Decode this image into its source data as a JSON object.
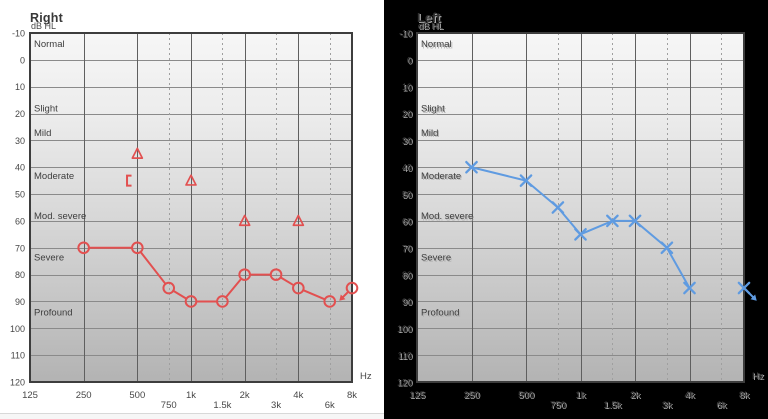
{
  "colors": {
    "right_ear_accent": "#e25050",
    "left_ear_accent": "#5f9be1",
    "right_panel_bg": "#ffffff",
    "left_panel_bg": "#000000"
  },
  "axes": {
    "y_label": "dB HL",
    "x_label": "Hz",
    "ylim": [
      -10,
      120
    ],
    "y_ticks": [
      -10,
      0,
      10,
      20,
      30,
      40,
      50,
      60,
      70,
      80,
      90,
      100,
      110,
      120
    ],
    "x_ticks_major": [
      "125",
      "250",
      "500",
      "1k",
      "2k",
      "4k",
      "8k"
    ],
    "x_ticks_minor": [
      "750",
      "1.5k",
      "3k",
      "6k"
    ],
    "severity_zones": [
      {
        "label": "Normal",
        "db": -6
      },
      {
        "label": "Slight",
        "db": 18
      },
      {
        "label": "Mild",
        "db": 27
      },
      {
        "label": "Moderate",
        "db": 43
      },
      {
        "label": "Mod. severe",
        "db": 58
      },
      {
        "label": "Severe",
        "db": 73.5
      },
      {
        "label": "Profound",
        "db": 94
      }
    ]
  },
  "chart_data": [
    {
      "type": "line",
      "title": "Right",
      "ear": "right",
      "marker": "circle",
      "color": "#e25050",
      "x_unit": "Hz",
      "y_unit": "dB HL",
      "ylim": [
        -10,
        120
      ],
      "x": [
        "250",
        "500",
        "750",
        "1k",
        "1.5k",
        "2k",
        "3k",
        "4k",
        "6k"
      ],
      "y": [
        70,
        70,
        85,
        90,
        90,
        80,
        80,
        85,
        90
      ],
      "no_response_point": {
        "x": "8k",
        "y": 85,
        "arrow": "down-left"
      },
      "unjoined_symbols": [
        {
          "symbol": "triangle",
          "x": "500",
          "y": 35
        },
        {
          "symbol": "left-bracket",
          "x": "500",
          "y": 45
        },
        {
          "symbol": "triangle",
          "x": "1k",
          "y": 45
        },
        {
          "symbol": "triangle",
          "x": "2k",
          "y": 60
        },
        {
          "symbol": "triangle",
          "x": "4k",
          "y": 60
        }
      ]
    },
    {
      "type": "line",
      "title": "Left",
      "ear": "left",
      "marker": "x",
      "color": "#5f9be1",
      "x_unit": "Hz",
      "y_unit": "dB HL",
      "ylim": [
        -10,
        120
      ],
      "x": [
        "250",
        "500",
        "750",
        "1k",
        "1.5k",
        "2k",
        "3k",
        "4k"
      ],
      "y": [
        40,
        45,
        55,
        65,
        60,
        60,
        70,
        85
      ],
      "no_response_point": {
        "x": "8k",
        "y": 85,
        "arrow": "down-right"
      },
      "unjoined_symbols": []
    }
  ]
}
